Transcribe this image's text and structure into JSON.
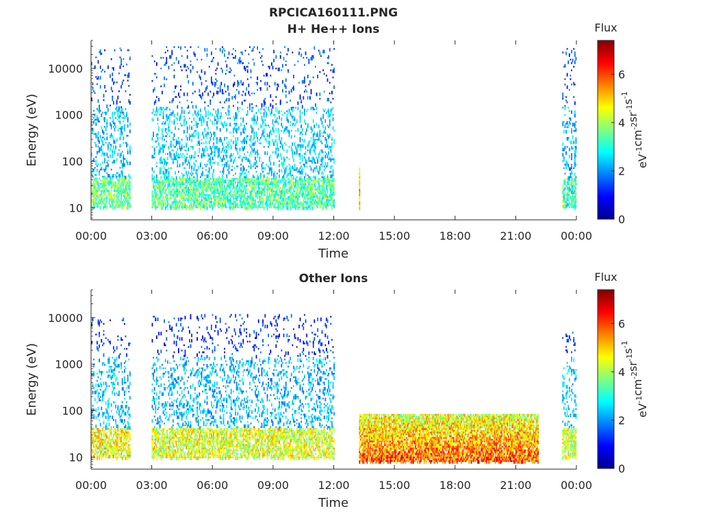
{
  "figure_title": "RPCICA160111.PNG",
  "colors": {
    "axis": "#262626",
    "colormap": [
      "#00008f",
      "#0000ff",
      "#0080ff",
      "#00ffff",
      "#80ff80",
      "#ffff00",
      "#ff8000",
      "#ff0000",
      "#800000"
    ]
  },
  "colorbar": {
    "label": "Flux",
    "ticks": [
      "0",
      "2",
      "4",
      "6"
    ],
    "range": [
      0,
      7.4
    ],
    "units": {
      "base1": "eV",
      "exp1": "-1",
      "base2": "cm",
      "exp2": "-2",
      "base3": "sr",
      "exp3": "-1",
      "base4": "s",
      "exp4": "-1"
    }
  },
  "chart_data": [
    {
      "type": "heatmap",
      "title": "H+ He++ Ions",
      "xlabel": "Time",
      "ylabel": "Energy (eV)",
      "x_tick_labels": [
        "00:00",
        "03:00",
        "06:00",
        "09:00",
        "12:00",
        "15:00",
        "18:00",
        "21:00",
        "00:00"
      ],
      "x_range_hours": [
        0,
        24
      ],
      "y_tick_labels": [
        "10",
        "100",
        "1000",
        "10000"
      ],
      "y_scale": "log",
      "y_range": [
        5.5,
        40000
      ],
      "z_range": [
        0,
        7.4
      ],
      "regions": [
        {
          "t_start": 0.0,
          "t_end": 1.9,
          "e_low": 10,
          "e_high": 28000,
          "z_low_band": 3.6,
          "z_mid": 2.3,
          "z_high": 1.4
        },
        {
          "t_start": 3.0,
          "t_end": 12.0,
          "e_low": 10,
          "e_high": 30000,
          "z_low_band": 3.4,
          "z_mid": 2.4,
          "z_high": 1.5
        },
        {
          "t_start": 13.25,
          "t_end": 13.3,
          "e_low": 10,
          "e_high": 80,
          "z_low_band": 5.6,
          "z_mid": 3.0,
          "z_high": 3.0
        },
        {
          "t_start": 23.3,
          "t_end": 24.0,
          "e_low": 10,
          "e_high": 30000,
          "z_low_band": 3.2,
          "z_mid": 2.2,
          "z_high": 1.4
        }
      ]
    },
    {
      "type": "heatmap",
      "title": "Other Ions",
      "xlabel": "Time",
      "ylabel": "Energy (eV)",
      "x_tick_labels": [
        "00:00",
        "03:00",
        "06:00",
        "09:00",
        "12:00",
        "15:00",
        "18:00",
        "21:00",
        "00:00"
      ],
      "x_range_hours": [
        0,
        24
      ],
      "y_tick_labels": [
        "10",
        "100",
        "1000",
        "10000"
      ],
      "y_scale": "log",
      "y_range": [
        5.5,
        40000
      ],
      "z_range": [
        0,
        7.4
      ],
      "regions": [
        {
          "t_start": 0.0,
          "t_end": 1.9,
          "e_low": 10,
          "e_high": 10000,
          "z_low_band": 4.6,
          "z_mid": 2.3,
          "z_high": 1.2
        },
        {
          "t_start": 3.0,
          "t_end": 12.0,
          "e_low": 10,
          "e_high": 12000,
          "z_low_band": 4.4,
          "z_mid": 2.2,
          "z_high": 1.2
        },
        {
          "t_start": 13.25,
          "t_end": 22.1,
          "e_low": 8,
          "e_high": 85,
          "z_low_band": 5.9,
          "z_mid": 4.6,
          "z_high": 3.8
        },
        {
          "t_start": 23.3,
          "t_end": 24.0,
          "e_low": 10,
          "e_high": 5000,
          "z_low_band": 4.2,
          "z_mid": 2.4,
          "z_high": 1.3
        }
      ]
    }
  ]
}
